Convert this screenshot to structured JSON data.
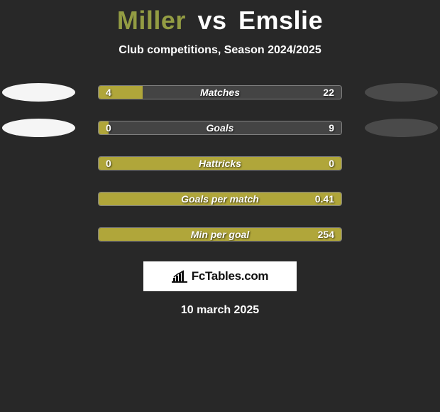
{
  "title": {
    "left": "Miller",
    "vs": "vs",
    "right": "Emslie"
  },
  "subtitle": "Club competitions, Season 2024/2025",
  "colors": {
    "left_bar": "#b0a63a",
    "right_bar": "#444444",
    "background": "#282828",
    "badge_left": "#f5f5f5",
    "badge_right": "#4a4a4a",
    "text": "#ffffff"
  },
  "stats": [
    {
      "name": "Matches",
      "left_value": "4",
      "right_value": "22",
      "left_pct": 18,
      "show_left_badge": true,
      "show_right_badge": true
    },
    {
      "name": "Goals",
      "left_value": "0",
      "right_value": "9",
      "left_pct": 4,
      "show_left_badge": true,
      "show_right_badge": true
    },
    {
      "name": "Hattricks",
      "left_value": "0",
      "right_value": "0",
      "left_pct": 100,
      "show_left_badge": false,
      "show_right_badge": false
    },
    {
      "name": "Goals per match",
      "left_value": "",
      "right_value": "0.41",
      "left_pct": 100,
      "show_left_badge": false,
      "show_right_badge": false
    },
    {
      "name": "Min per goal",
      "left_value": "",
      "right_value": "254",
      "left_pct": 100,
      "show_left_badge": false,
      "show_right_badge": false
    }
  ],
  "footer": {
    "logo_text": "FcTables.com",
    "date": "10 march 2025"
  }
}
